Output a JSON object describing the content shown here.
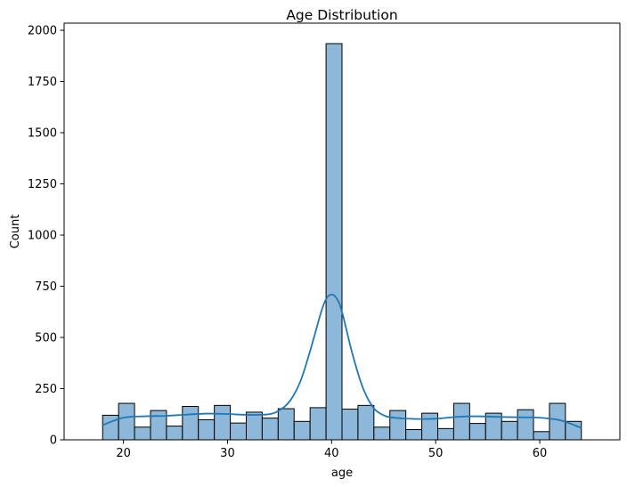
{
  "chart_data": {
    "type": "bar",
    "title": "Age Distribution",
    "xlabel": "age",
    "ylabel": "Count",
    "xlim": [
      14.3,
      67.7
    ],
    "ylim": [
      0,
      2035
    ],
    "x_ticks": [
      20,
      30,
      40,
      50,
      60
    ],
    "y_ticks": [
      0,
      250,
      500,
      750,
      1000,
      1250,
      1500,
      1750,
      2000
    ],
    "bin_edges": [
      18,
      19.5333,
      21.0667,
      22.6,
      24.1333,
      25.6667,
      27.2,
      28.7333,
      30.2667,
      31.8,
      33.3333,
      34.8667,
      36.4,
      37.9333,
      39.4667,
      41,
      42.5333,
      44.0667,
      45.6,
      47.1333,
      48.6667,
      50.2,
      51.7333,
      53.2667,
      54.8,
      56.3333,
      57.8667,
      59.4,
      60.9333,
      62.4667,
      64
    ],
    "values": [
      120,
      178,
      62,
      143,
      67,
      163,
      98,
      168,
      82,
      135,
      106,
      152,
      90,
      157,
      1935,
      150,
      168,
      62,
      143,
      50,
      130,
      55,
      178,
      80,
      130,
      90,
      147,
      40,
      178,
      90
    ],
    "kde": {
      "x": [
        18,
        20,
        22,
        24,
        26,
        28,
        30,
        32,
        34,
        35,
        36,
        37,
        38,
        39,
        39.5,
        40,
        40.5,
        41,
        42,
        43,
        44,
        45,
        46,
        48,
        50,
        52,
        54,
        56,
        58,
        60,
        62,
        64
      ],
      "y": [
        72,
        108,
        115,
        117,
        123,
        128,
        126,
        122,
        125,
        145,
        190,
        285,
        445,
        625,
        690,
        710,
        690,
        625,
        420,
        255,
        158,
        120,
        108,
        102,
        103,
        112,
        115,
        112,
        110,
        108,
        95,
        58
      ]
    },
    "colors": {
      "bar_fill": "#8db8d9",
      "bar_edge": "#000000",
      "kde_line": "#1f77b4"
    },
    "grid": false,
    "legend": "none"
  }
}
